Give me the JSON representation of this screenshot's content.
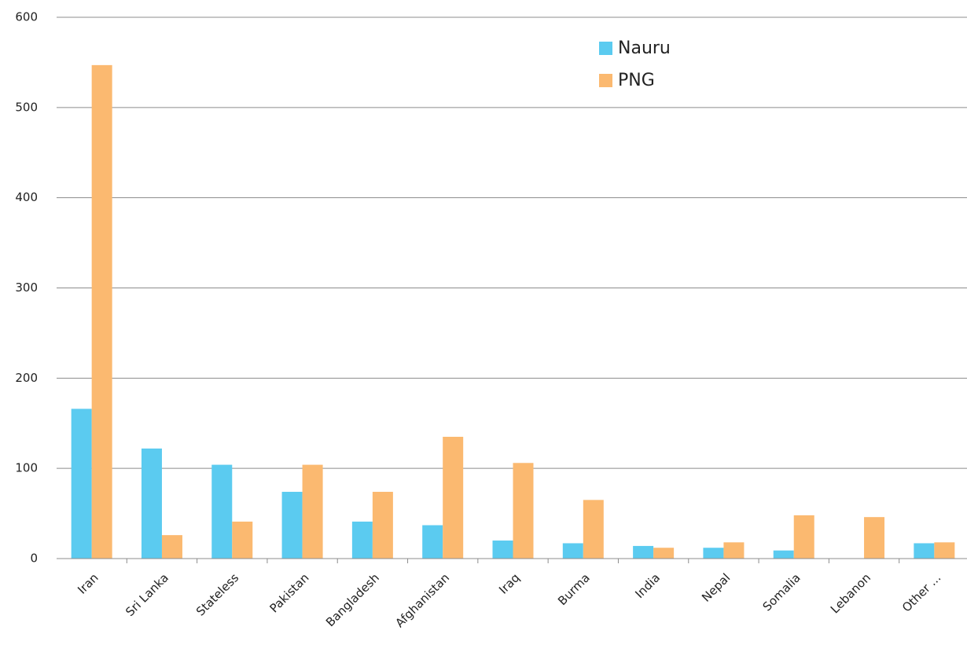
{
  "chart_data": {
    "type": "bar",
    "categories": [
      "Iran",
      "Sri Lanka",
      "Stateless",
      "Pakistan",
      "Bangladesh",
      "Afghanistan",
      "Iraq",
      "Burma",
      "India",
      "Nepal",
      "Somalia",
      "Lebanon",
      "Other ..."
    ],
    "series": [
      {
        "name": "Nauru",
        "color": "#5bcbf0",
        "values": [
          166,
          122,
          104,
          74,
          41,
          37,
          20,
          17,
          14,
          12,
          9,
          0,
          17
        ]
      },
      {
        "name": "PNG",
        "color": "#fbb970",
        "values": [
          547,
          26,
          41,
          104,
          74,
          135,
          106,
          65,
          12,
          18,
          48,
          46,
          18
        ]
      }
    ],
    "ylim": [
      0,
      600
    ],
    "yticks": [
      0,
      100,
      200,
      300,
      400,
      500,
      600
    ],
    "grid": true,
    "legend": "top-right"
  }
}
